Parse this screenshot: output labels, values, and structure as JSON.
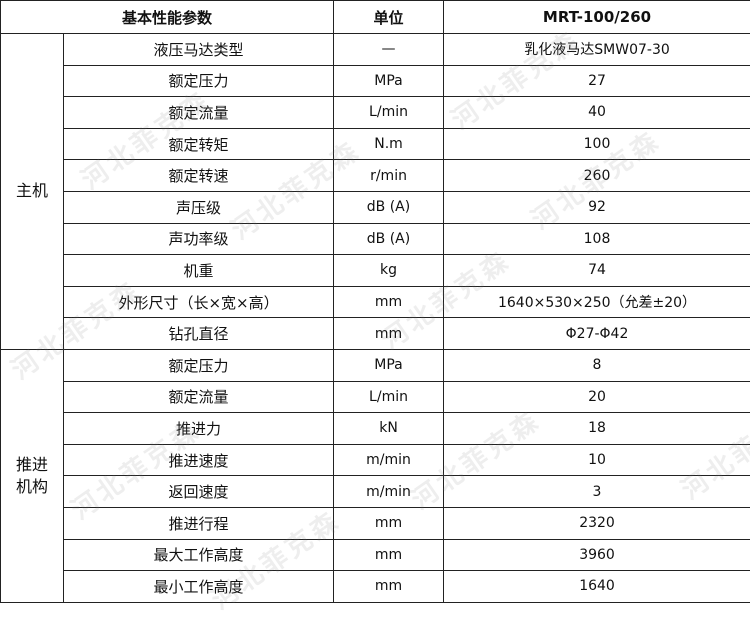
{
  "table": {
    "header": [
      "基本性能参数",
      "单位",
      "MRT-100/260"
    ],
    "groups": [
      {
        "label": "主机",
        "rows": [
          [
            "液压马达类型",
            "—",
            "乳化液马达SMW07-30"
          ],
          [
            "额定压力",
            "MPa",
            "27"
          ],
          [
            "额定流量",
            "L/min",
            "40"
          ],
          [
            "额定转矩",
            "N.m",
            "100"
          ],
          [
            "额定转速",
            "r/min",
            "260"
          ],
          [
            "声压级",
            "dB (A)",
            "92"
          ],
          [
            "声功率级",
            "dB (A)",
            "108"
          ],
          [
            "机重",
            "kg",
            "74"
          ],
          [
            "外形尺寸（长×宽×高）",
            "mm",
            "1640×530×250（允差±20）"
          ],
          [
            "钻孔直径",
            "mm",
            "Φ27-Φ42"
          ]
        ]
      },
      {
        "label": "推进\n机构",
        "rows": [
          [
            "额定压力",
            "MPa",
            "8"
          ],
          [
            "额定流量",
            "L/min",
            "20"
          ],
          [
            "推进力",
            "kN",
            "18"
          ],
          [
            "推进速度",
            "m/min",
            "10"
          ],
          [
            "返回速度",
            "m/min",
            "3"
          ],
          [
            "推进行程",
            "mm",
            "2320"
          ],
          [
            "最大工作高度",
            "mm",
            "3960"
          ],
          [
            "最小工作高度",
            "mm",
            "1640"
          ]
        ]
      }
    ]
  },
  "watermark": "河北菲克森"
}
